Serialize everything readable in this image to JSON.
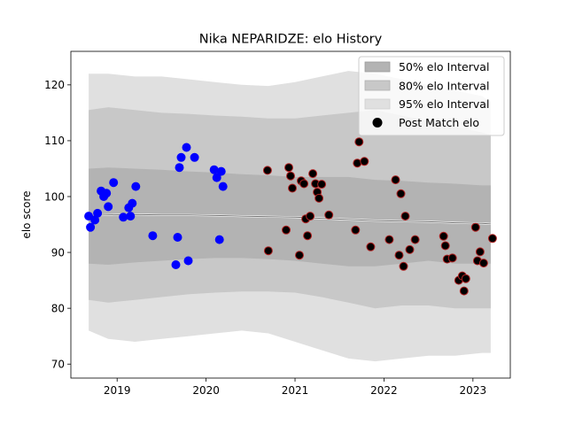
{
  "chart_data": {
    "type": "scatter",
    "title": "Nika NEPARIDZE: elo History",
    "xlabel": "",
    "ylabel": "elo score",
    "xlim": [
      2018.48,
      2023.42
    ],
    "ylim": [
      67.5,
      126.0
    ],
    "xticks": [
      2019,
      2020,
      2021,
      2022,
      2023
    ],
    "xtick_labels": [
      "2019",
      "2020",
      "2021",
      "2022",
      "2023"
    ],
    "yticks": [
      70,
      80,
      90,
      100,
      110,
      120
    ],
    "ytick_labels": [
      "70",
      "80",
      "90",
      "100",
      "110",
      "120"
    ],
    "grid": false,
    "legend_position": "top-right",
    "legend": [
      {
        "label": "50% elo Interval",
        "kind": "patch",
        "color": "#b3b3b3"
      },
      {
        "label": "80% elo Interval",
        "kind": "patch",
        "color": "#c8c8c8"
      },
      {
        "label": "95% elo Interval",
        "kind": "patch",
        "color": "#e0e0e0"
      },
      {
        "label": "Post Match elo",
        "kind": "marker",
        "color": "#000000"
      }
    ],
    "intervals": {
      "x": [
        2018.68,
        2018.9,
        2019.2,
        2019.5,
        2019.8,
        2020.1,
        2020.4,
        2020.7,
        2021.0,
        2021.3,
        2021.6,
        2021.9,
        2022.2,
        2022.5,
        2022.8,
        2023.1,
        2023.2
      ],
      "mean": [
        96.6,
        96.7,
        96.8,
        96.7,
        96.7,
        96.6,
        96.5,
        96.4,
        96.3,
        96.1,
        95.9,
        95.7,
        95.6,
        95.5,
        95.3,
        95.2,
        95.1
      ],
      "p50": [
        [
          88.0,
          105.0
        ],
        [
          87.8,
          105.2
        ],
        [
          88.2,
          105.0
        ],
        [
          88.5,
          104.8
        ],
        [
          88.8,
          104.5
        ],
        [
          89.0,
          104.3
        ],
        [
          89.0,
          104.0
        ],
        [
          88.8,
          103.8
        ],
        [
          88.5,
          103.5
        ],
        [
          88.0,
          103.5
        ],
        [
          87.5,
          103.5
        ],
        [
          87.5,
          103.0
        ],
        [
          88.0,
          102.8
        ],
        [
          88.5,
          102.5
        ],
        [
          88.0,
          102.3
        ],
        [
          88.0,
          102.0
        ],
        [
          88.0,
          102.0
        ]
      ],
      "p80": [
        [
          81.5,
          115.5
        ],
        [
          81.0,
          116.0
        ],
        [
          81.5,
          115.5
        ],
        [
          82.0,
          115.0
        ],
        [
          82.5,
          114.8
        ],
        [
          82.8,
          114.5
        ],
        [
          83.0,
          114.3
        ],
        [
          83.0,
          114.0
        ],
        [
          82.8,
          114.0
        ],
        [
          82.0,
          114.5
        ],
        [
          81.0,
          115.0
        ],
        [
          80.0,
          115.5
        ],
        [
          80.5,
          114.5
        ],
        [
          80.5,
          113.5
        ],
        [
          80.0,
          112.5
        ],
        [
          80.0,
          111.5
        ],
        [
          80.0,
          111.0
        ]
      ],
      "p95": [
        [
          76.0,
          122.0
        ],
        [
          74.5,
          122.0
        ],
        [
          74.0,
          121.5
        ],
        [
          74.5,
          121.5
        ],
        [
          75.0,
          121.0
        ],
        [
          75.5,
          120.5
        ],
        [
          76.0,
          120.0
        ],
        [
          75.5,
          119.8
        ],
        [
          74.0,
          120.5
        ],
        [
          72.5,
          121.5
        ],
        [
          71.0,
          122.5
        ],
        [
          70.5,
          122.0
        ],
        [
          71.0,
          121.0
        ],
        [
          71.5,
          120.0
        ],
        [
          71.5,
          119.0
        ],
        [
          72.0,
          118.0
        ],
        [
          72.0,
          117.0
        ]
      ]
    },
    "series": [
      {
        "marker_color": "#0000ff",
        "marker_edge": "#0000ff",
        "points": [
          [
            2018.68,
            96.5
          ],
          [
            2018.7,
            94.5
          ],
          [
            2018.75,
            95.8
          ],
          [
            2018.78,
            97.0
          ],
          [
            2018.82,
            101.0
          ],
          [
            2018.85,
            100.0
          ],
          [
            2018.88,
            100.6
          ],
          [
            2018.9,
            98.2
          ],
          [
            2018.96,
            102.5
          ],
          [
            2019.07,
            96.3
          ],
          [
            2019.13,
            98.0
          ],
          [
            2019.15,
            96.5
          ],
          [
            2019.17,
            98.8
          ],
          [
            2019.21,
            101.8
          ],
          [
            2019.4,
            93.0
          ],
          [
            2019.66,
            87.8
          ],
          [
            2019.68,
            92.7
          ],
          [
            2019.7,
            105.2
          ],
          [
            2019.72,
            107.0
          ],
          [
            2019.78,
            108.8
          ],
          [
            2019.8,
            88.5
          ],
          [
            2019.87,
            107.0
          ],
          [
            2020.09,
            104.8
          ],
          [
            2020.12,
            103.4
          ],
          [
            2020.15,
            92.3
          ],
          [
            2020.17,
            104.5
          ],
          [
            2020.19,
            101.8
          ]
        ]
      },
      {
        "marker_color": "#000000",
        "marker_edge": "#b22222",
        "points": [
          [
            2020.69,
            104.7
          ],
          [
            2020.7,
            90.3
          ],
          [
            2020.9,
            94.0
          ],
          [
            2020.93,
            105.2
          ],
          [
            2020.95,
            103.7
          ],
          [
            2020.97,
            101.5
          ],
          [
            2021.05,
            89.5
          ],
          [
            2021.07,
            102.8
          ],
          [
            2021.1,
            102.3
          ],
          [
            2021.12,
            96.0
          ],
          [
            2021.14,
            93.0
          ],
          [
            2021.17,
            96.5
          ],
          [
            2021.2,
            104.1
          ],
          [
            2021.23,
            102.3
          ],
          [
            2021.25,
            100.8
          ],
          [
            2021.27,
            99.7
          ],
          [
            2021.3,
            102.2
          ],
          [
            2021.38,
            96.7
          ],
          [
            2021.68,
            94.0
          ],
          [
            2021.7,
            106.0
          ],
          [
            2021.72,
            109.8
          ],
          [
            2021.78,
            106.3
          ],
          [
            2021.85,
            91.0
          ],
          [
            2022.06,
            92.3
          ],
          [
            2022.13,
            103.0
          ],
          [
            2022.17,
            89.5
          ],
          [
            2022.19,
            100.5
          ],
          [
            2022.22,
            87.5
          ],
          [
            2022.24,
            96.5
          ],
          [
            2022.29,
            90.5
          ],
          [
            2022.35,
            92.3
          ],
          [
            2022.67,
            92.9
          ],
          [
            2022.69,
            91.2
          ],
          [
            2022.71,
            88.8
          ],
          [
            2022.77,
            89.0
          ],
          [
            2022.84,
            85.0
          ],
          [
            2022.88,
            85.8
          ],
          [
            2022.9,
            83.1
          ],
          [
            2022.92,
            85.3
          ],
          [
            2023.03,
            94.5
          ],
          [
            2023.05,
            88.5
          ],
          [
            2023.08,
            90.1
          ],
          [
            2023.12,
            88.1
          ],
          [
            2023.22,
            92.5
          ]
        ]
      }
    ]
  }
}
